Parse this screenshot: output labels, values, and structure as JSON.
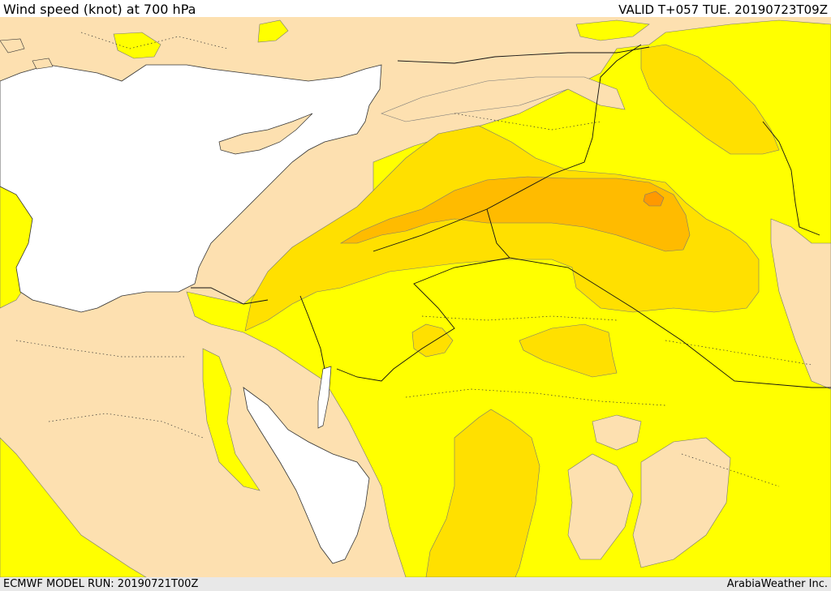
{
  "header": {
    "title": "Wind speed (knot) at 700 hPa",
    "valid": "VALID T+057 TUE. 20190723T09Z"
  },
  "footer": {
    "model_run": "ECMWF MODEL RUN: 20190721T00Z",
    "credit": "ArabiaWeather Inc."
  },
  "legend_colors": {
    "sea": "#ffffff",
    "low_wind_land": "#fde0b0",
    "band_1": "#ffff00",
    "band_2": "#ffe000",
    "band_3": "#ffbb00",
    "band_4": "#ff9900"
  }
}
